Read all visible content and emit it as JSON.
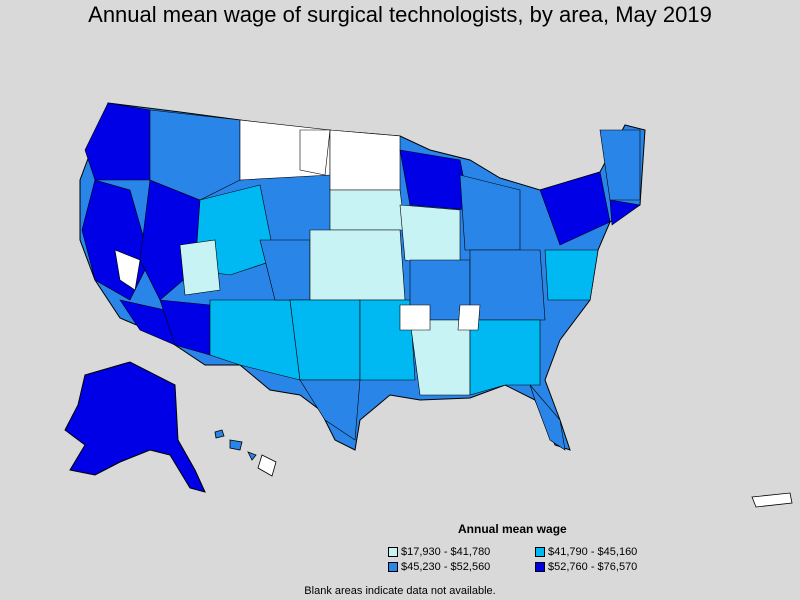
{
  "title": "Annual mean wage of surgical technologists, by area, May 2019",
  "legend": {
    "title": "Annual mean wage",
    "items": [
      {
        "label": "$17,930 - $41,780",
        "color": "#c7f3f5"
      },
      {
        "label": "$41,790 - $45,160",
        "color": "#00b9f2"
      },
      {
        "label": "$45,230 - $52,560",
        "color": "#2a85e8"
      },
      {
        "label": "$52,760 - $76,570",
        "color": "#0000e6"
      }
    ]
  },
  "note": "Blank areas indicate data not available.",
  "colors": {
    "background": "#d9d9d9",
    "no_data": "#ffffff",
    "border": "#000000"
  }
}
